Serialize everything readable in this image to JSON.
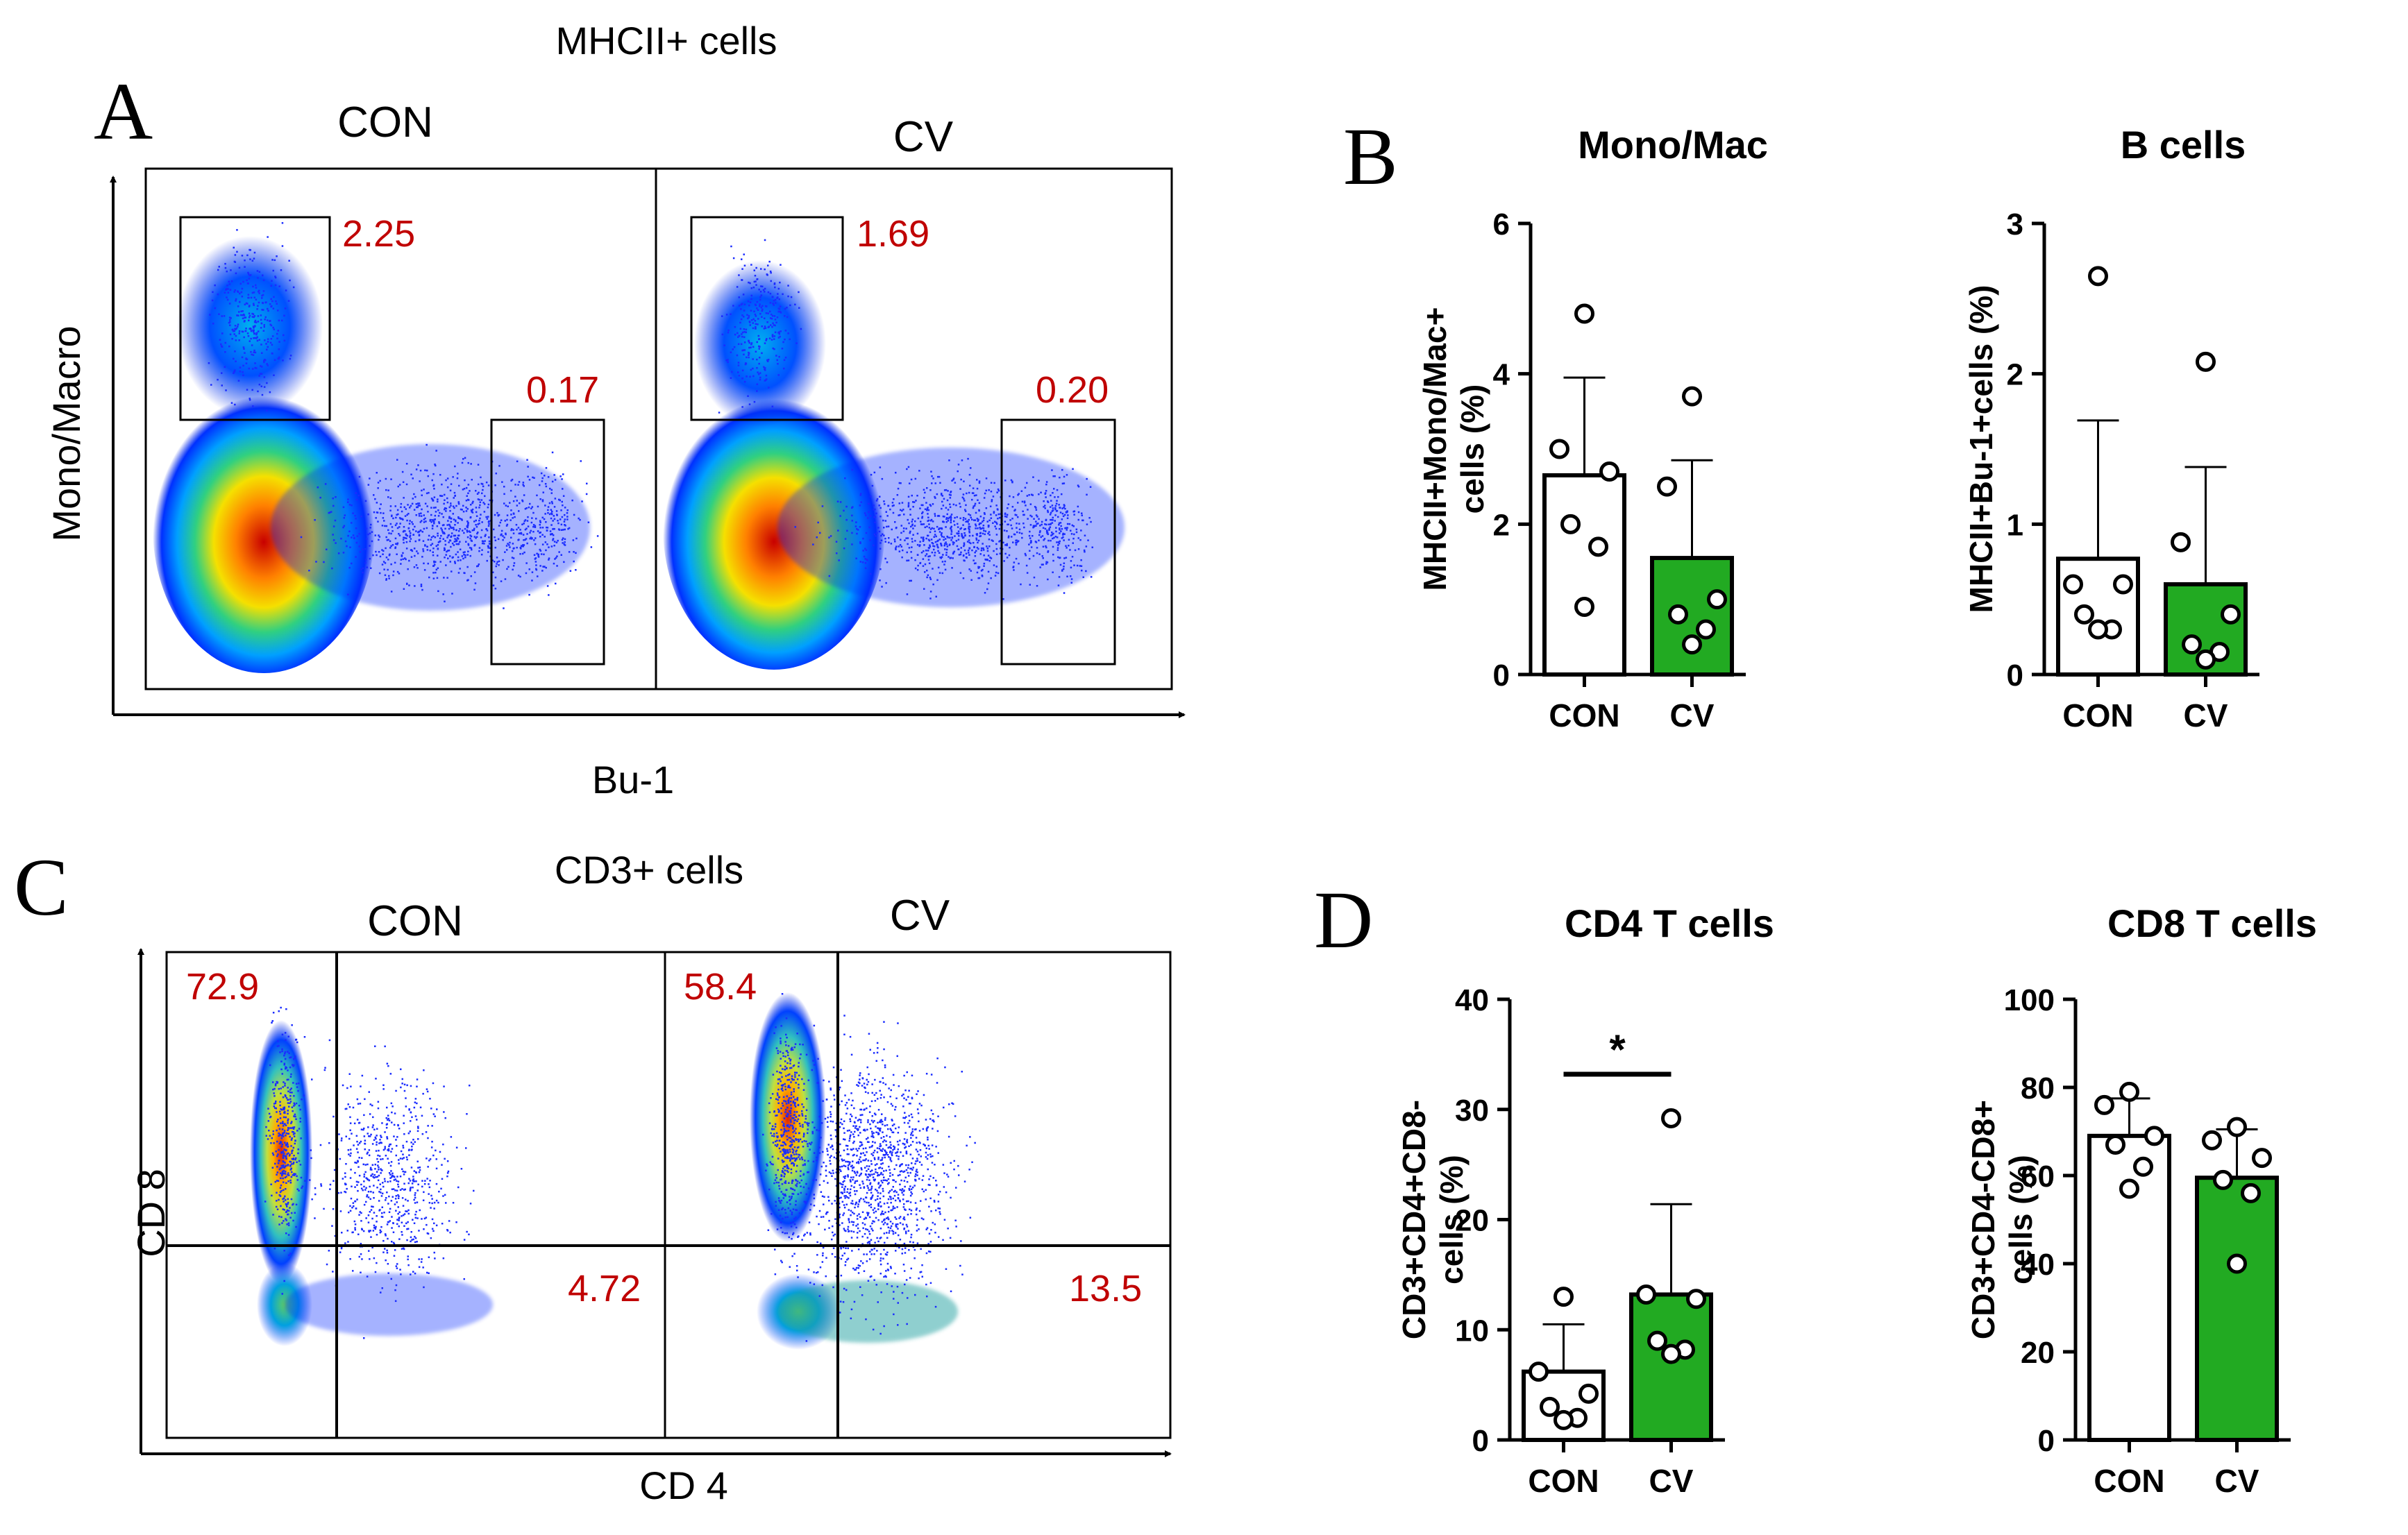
{
  "panel_letters": {
    "A": "A",
    "B": "B",
    "C": "C",
    "D": "D"
  },
  "flow_A": {
    "title": "MHCII+ cells",
    "xlabel": "Bu-1",
    "ylabel": "Mono/Macro",
    "plots": [
      {
        "name": "CON",
        "gate_mono": "2.25",
        "gate_b": "0.17"
      },
      {
        "name": "CV",
        "gate_mono": "1.69",
        "gate_b": "0.20"
      }
    ]
  },
  "flow_C": {
    "title": "CD3+ cells",
    "xlabel": "CD 4",
    "ylabel": "CD 8",
    "plots": [
      {
        "name": "CON",
        "q_cd8": "72.9",
        "q_cd4": "4.72"
      },
      {
        "name": "CV",
        "q_cd8": "58.4",
        "q_cd4": "13.5"
      }
    ]
  },
  "colors": {
    "con_fill": "#ffffff",
    "cv_fill": "#22aa22",
    "gate_text": "#c00000",
    "axis": "#000000"
  },
  "chart_data": [
    {
      "id": "monomac",
      "type": "bar",
      "title": "Mono/Mac",
      "ylabel_lines": [
        "MHCII+Mono/Mac+",
        "cells (%)"
      ],
      "categories": [
        "CON",
        "CV"
      ],
      "values": [
        2.65,
        1.55
      ],
      "sd": [
        1.3,
        1.3
      ],
      "points": [
        [
          4.8,
          3.0,
          2.7,
          2.0,
          1.7,
          0.9
        ],
        [
          3.7,
          2.5,
          1.0,
          0.8,
          0.6,
          0.4
        ]
      ],
      "ylim": [
        0,
        6
      ],
      "yticks": [
        0,
        2,
        4,
        6
      ],
      "significance": ""
    },
    {
      "id": "bcells",
      "type": "bar",
      "title": "B cells",
      "ylabel_lines": [
        "MHCII+Bu-1+cells (%)"
      ],
      "categories": [
        "CON",
        "CV"
      ],
      "values": [
        0.77,
        0.6
      ],
      "sd": [
        0.92,
        0.78
      ],
      "points": [
        [
          2.65,
          0.6,
          0.6,
          0.4,
          0.3,
          0.3
        ],
        [
          2.08,
          0.88,
          0.4,
          0.2,
          0.15,
          0.1
        ]
      ],
      "ylim": [
        0,
        3
      ],
      "yticks": [
        0,
        1,
        2,
        3
      ],
      "significance": ""
    },
    {
      "id": "cd4",
      "type": "bar",
      "title": "CD4 T cells",
      "ylabel_lines": [
        "CD3+CD4+CD8-",
        "cells  (%)"
      ],
      "categories": [
        "CON",
        "CV"
      ],
      "values": [
        6.2,
        13.2
      ],
      "sd": [
        4.3,
        8.2
      ],
      "points": [
        [
          13.0,
          6.2,
          4.2,
          3.0,
          2.0,
          1.8
        ],
        [
          29.2,
          13.2,
          12.8,
          9.0,
          8.2,
          7.8
        ]
      ],
      "ylim": [
        0,
        40
      ],
      "yticks": [
        0,
        10,
        20,
        30,
        40
      ],
      "significance": "*"
    },
    {
      "id": "cd8",
      "type": "bar",
      "title": "CD8 T cells",
      "ylabel_lines": [
        "CD3+CD4-CD8+",
        "cells  (%)"
      ],
      "categories": [
        "CON",
        "CV"
      ],
      "values": [
        69,
        59.5
      ],
      "sd": [
        8.5,
        11
      ],
      "points": [
        [
          79,
          76,
          69,
          67,
          62,
          57
        ],
        [
          71,
          68,
          64,
          59,
          56,
          40
        ]
      ],
      "ylim": [
        0,
        100
      ],
      "yticks": [
        0,
        20,
        40,
        60,
        80,
        100
      ],
      "significance": ""
    }
  ]
}
